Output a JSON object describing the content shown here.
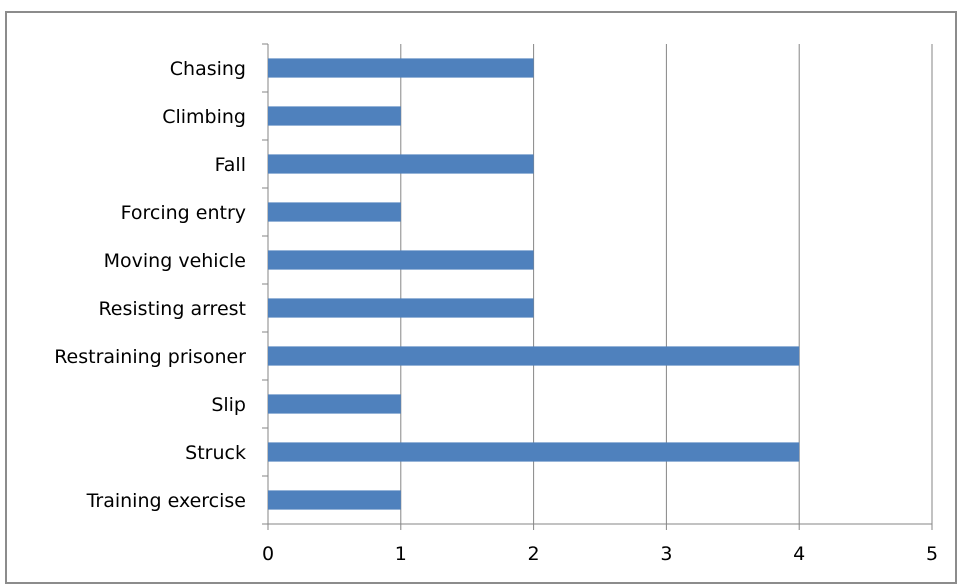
{
  "chart_data": {
    "type": "bar",
    "orientation": "horizontal",
    "categories": [
      "Chasing",
      "Climbing",
      "Fall",
      "Forcing entry",
      "Moving vehicle",
      "Resisting arrest",
      "Restraining prisoner",
      "Slip",
      "Struck",
      "Training exercise"
    ],
    "series": [
      {
        "values": [
          2,
          1,
          2,
          1,
          2,
          2,
          4,
          1,
          4,
          1
        ]
      }
    ],
    "xlim": [
      0,
      5
    ],
    "xticks": [
      0,
      1,
      2,
      3,
      4,
      5
    ],
    "grid": "vertical",
    "legend": "none",
    "title": "",
    "xlabel": "",
    "ylabel": ""
  },
  "colors": {
    "bar": "#4f81bd",
    "grid": "#868686",
    "axis": "#868686",
    "border": "#8c8c8c"
  }
}
